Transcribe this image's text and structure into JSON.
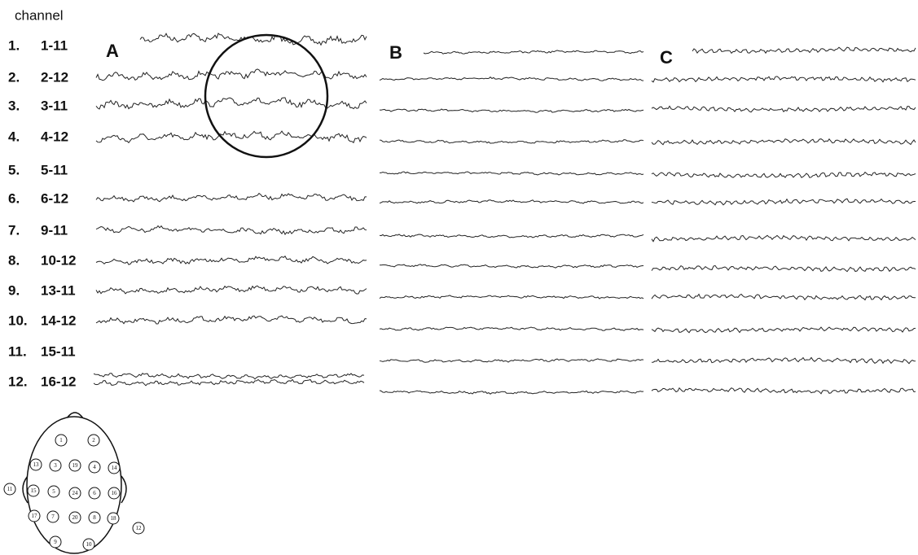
{
  "header": "channel",
  "channels": [
    {
      "number": "1.",
      "label": "1-11"
    },
    {
      "number": "2.",
      "label": "2-12"
    },
    {
      "number": "3.",
      "label": "3-11"
    },
    {
      "number": "4.",
      "label": "4-12"
    },
    {
      "number": "5.",
      "label": "5-11"
    },
    {
      "number": "6.",
      "label": "6-12"
    },
    {
      "number": "7.",
      "label": "9-11"
    },
    {
      "number": "8.",
      "label": "10-12"
    },
    {
      "number": "9.",
      "label": "13-11"
    },
    {
      "number": "10.",
      "label": "14-12"
    },
    {
      "number": "11.",
      "label": "15-11"
    },
    {
      "number": "12.",
      "label": "16-12"
    }
  ],
  "panels": [
    "A",
    "B",
    "C"
  ],
  "electrodes": [
    "1",
    "2",
    "13",
    "3",
    "19",
    "4",
    "14",
    "15",
    "5",
    "24",
    "6",
    "16",
    "17",
    "7",
    "20",
    "8",
    "18",
    "9",
    "10",
    "11",
    "12"
  ]
}
